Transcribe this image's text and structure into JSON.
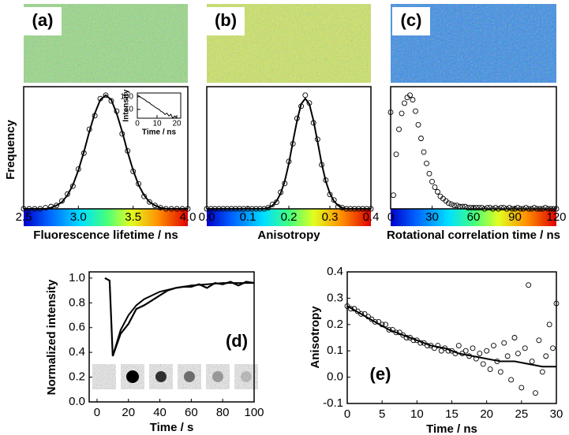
{
  "chart_data": [
    {
      "type": "scatter",
      "panel_label": "(a)",
      "xlabel": "Fluorescence lifetime / ns",
      "ylabel": "Frequency",
      "colorbar": true,
      "xlim": [
        2.5,
        4.0
      ],
      "xticks": [
        2.5,
        {
          "value": 3,
          "label": "3.0"
        },
        3.5,
        {
          "value": 4,
          "label": "4.0"
        }
      ],
      "x": [
        2.5,
        2.55,
        2.6,
        2.65,
        2.7,
        2.75,
        2.8,
        2.85,
        2.9,
        2.95,
        3.0,
        3.05,
        3.1,
        3.15,
        3.2,
        3.25,
        3.3,
        3.35,
        3.4,
        3.45,
        3.5,
        3.55,
        3.6,
        3.65,
        3.7,
        3.75,
        3.8,
        3.85,
        3.9,
        3.95,
        4.0
      ],
      "values": [
        0,
        0,
        0,
        0,
        1,
        2,
        3,
        7,
        13,
        20,
        35,
        49,
        70,
        82,
        97,
        100,
        95,
        86,
        66,
        51,
        33,
        22,
        11,
        6,
        3,
        1,
        0,
        0,
        0,
        0,
        0
      ],
      "fit": [
        0,
        0,
        0,
        0,
        0,
        1,
        3,
        6,
        12,
        21,
        34,
        50,
        68,
        84,
        96,
        100,
        96,
        84,
        68,
        50,
        34,
        21,
        12,
        6,
        3,
        1,
        0,
        0,
        0,
        0,
        0
      ],
      "inset": {
        "type": "line",
        "xlabel": "Time / ns",
        "ylabel": "Intensity",
        "log_y": true,
        "xlim": [
          0,
          22
        ],
        "xticks": [
          0,
          10,
          20
        ],
        "ylim": [
          2,
          200
        ],
        "yticks": [
          10,
          100
        ],
        "x": [
          0,
          1,
          2,
          3,
          4,
          5,
          6,
          7,
          8,
          9,
          10,
          11,
          12,
          13,
          14,
          15,
          16,
          17,
          18,
          19,
          20
        ],
        "values": [
          140,
          110,
          85,
          70,
          55,
          40,
          35,
          25,
          20,
          15,
          12,
          10,
          7,
          6,
          4,
          5,
          3,
          4,
          2,
          3,
          2
        ]
      }
    },
    {
      "type": "scatter",
      "panel_label": "(b)",
      "xlabel": "Anisotropy",
      "colorbar": true,
      "xlim": [
        0,
        0.4
      ],
      "xticks": [
        {
          "value": 0,
          "label": "0.0"
        },
        0.1,
        0.2,
        0.3,
        0.4
      ],
      "x": [
        0,
        0.01,
        0.02,
        0.03,
        0.04,
        0.05,
        0.06,
        0.07,
        0.08,
        0.09,
        0.1,
        0.11,
        0.12,
        0.13,
        0.14,
        0.15,
        0.16,
        0.17,
        0.18,
        0.19,
        0.2,
        0.21,
        0.22,
        0.23,
        0.24,
        0.25,
        0.26,
        0.27,
        0.28,
        0.29,
        0.3,
        0.31,
        0.32,
        0.33,
        0.34,
        0.35,
        0.36,
        0.37,
        0.38,
        0.39,
        0.4
      ],
      "values": [
        0,
        0,
        0,
        0,
        0,
        0,
        0,
        0,
        0,
        0,
        0,
        0,
        0,
        0,
        0,
        1,
        4,
        6,
        15,
        23,
        43,
        59,
        82,
        93,
        103,
        96,
        78,
        63,
        40,
        26,
        13,
        8,
        2,
        1,
        0,
        0,
        0,
        0,
        0,
        0,
        0
      ],
      "fit": [
        0,
        0,
        0,
        0,
        0,
        0,
        0,
        0,
        0,
        0,
        0,
        0,
        0,
        0,
        0,
        1,
        3,
        7,
        14,
        25,
        41,
        61,
        80,
        95,
        100,
        95,
        80,
        61,
        41,
        25,
        14,
        7,
        3,
        1,
        0,
        0,
        0,
        0,
        0,
        0,
        0
      ]
    },
    {
      "type": "scatter",
      "panel_label": "(c)",
      "xlabel": "Rotational correlation time / ns",
      "colorbar": true,
      "xlim": [
        0,
        120
      ],
      "xticks": [
        0,
        30,
        60,
        90,
        120
      ],
      "x": [
        0,
        2,
        4,
        6,
        8,
        10,
        12,
        14,
        16,
        18,
        20,
        22,
        24,
        26,
        28,
        30,
        32,
        34,
        36,
        38,
        40,
        42,
        44,
        46,
        48,
        50,
        52,
        54,
        56,
        58,
        60,
        62,
        64,
        66,
        68,
        70,
        72,
        74,
        76,
        78,
        80,
        82,
        84,
        86,
        88,
        90,
        92,
        94,
        96,
        98,
        100,
        102,
        104,
        106,
        108,
        110,
        112,
        114,
        116,
        118,
        120
      ],
      "values": [
        85,
        12,
        48,
        70,
        84,
        93,
        98,
        100,
        96,
        86,
        74,
        62,
        50,
        40,
        31,
        24,
        19,
        15,
        11,
        9,
        7,
        5,
        4,
        3,
        3,
        2,
        2,
        2,
        1,
        1,
        1,
        1,
        1,
        1,
        0,
        1,
        1,
        0,
        1,
        0,
        1,
        1,
        0,
        1,
        0,
        0,
        1,
        0,
        0,
        1,
        0,
        0,
        1,
        0,
        0,
        0,
        1,
        0,
        0,
        0,
        0
      ]
    },
    {
      "type": "line",
      "panel_label": "(d)",
      "xlabel": "Time / s",
      "ylabel": "Normalized intensity",
      "xlim": [
        -5,
        100
      ],
      "xticks": [
        0,
        20,
        40,
        60,
        80,
        100
      ],
      "ylim": [
        0,
        1.05
      ],
      "yticks": [
        {
          "value": 0,
          "label": "0.0"
        },
        0.2,
        0.4,
        0.6,
        0.8,
        {
          "value": 1,
          "label": "1.0"
        }
      ],
      "x": [
        5,
        8,
        10,
        15,
        20,
        25,
        30,
        35,
        40,
        45,
        50,
        55,
        60,
        65,
        70,
        75,
        80,
        85,
        90,
        95,
        100
      ],
      "values": [
        1.0,
        0.98,
        0.37,
        0.55,
        0.63,
        0.75,
        0.78,
        0.82,
        0.86,
        0.9,
        0.92,
        0.93,
        0.93,
        0.95,
        0.92,
        0.96,
        0.95,
        0.97,
        0.94,
        0.97,
        0.96
      ],
      "fit_x": [
        10,
        15,
        20,
        25,
        30,
        40,
        50,
        60,
        70,
        80,
        90,
        100
      ],
      "fit": [
        0.37,
        0.58,
        0.7,
        0.78,
        0.83,
        0.89,
        0.92,
        0.94,
        0.95,
        0.96,
        0.96,
        0.96
      ]
    },
    {
      "type": "scatter",
      "panel_label": "(e)",
      "xlabel": "Time / ns",
      "ylabel": "Anisotropy",
      "xlim": [
        0,
        30
      ],
      "xticks": [
        0,
        5,
        10,
        15,
        20,
        25,
        30
      ],
      "ylim": [
        -0.1,
        0.4
      ],
      "yticks": [
        -0.1,
        {
          "value": 0,
          "label": "0.0"
        },
        0.1,
        0.2,
        0.3,
        0.4
      ],
      "x": [
        0,
        0.5,
        1,
        1.5,
        2,
        2.5,
        3,
        3.5,
        4,
        4.5,
        5,
        5.5,
        6,
        6.5,
        7,
        7.5,
        8,
        8.5,
        9,
        9.5,
        10,
        10.5,
        11,
        11.5,
        12,
        12.5,
        13,
        13.5,
        14,
        14.5,
        15,
        15.5,
        16,
        16.5,
        17,
        17.5,
        18,
        18.5,
        19,
        19.5,
        20,
        20.5,
        21,
        21.5,
        22,
        22.5,
        23,
        23.5,
        24,
        24.5,
        25,
        25.5,
        26,
        26.5,
        27,
        27.5,
        28,
        28.5,
        29,
        29.5,
        30
      ],
      "values": [
        0.27,
        0.26,
        0.26,
        0.25,
        0.24,
        0.24,
        0.23,
        0.22,
        0.21,
        0.21,
        0.2,
        0.2,
        0.18,
        0.18,
        0.17,
        0.17,
        0.16,
        0.15,
        0.15,
        0.14,
        0.14,
        0.13,
        0.13,
        0.12,
        0.12,
        0.11,
        0.12,
        0.1,
        0.11,
        0.1,
        0.1,
        0.09,
        0.12,
        0.09,
        0.1,
        0.08,
        0.11,
        0.07,
        0.09,
        0.05,
        0.1,
        0.03,
        0.12,
        0.06,
        0.02,
        0.13,
        0.08,
        -0.01,
        0.15,
        0.09,
        -0.04,
        0.11,
        0.35,
        0.06,
        -0.06,
        0.14,
        0.02,
        0.08,
        0.2,
        0.11,
        0.28
      ],
      "fit_x": [
        0,
        2,
        4,
        6,
        8,
        10,
        12,
        14,
        16,
        18,
        20,
        22,
        24,
        26,
        28,
        30
      ],
      "fit": [
        0.27,
        0.24,
        0.21,
        0.18,
        0.16,
        0.14,
        0.12,
        0.11,
        0.09,
        0.08,
        0.07,
        0.06,
        0.06,
        0.05,
        0.04,
        0.04
      ]
    }
  ]
}
